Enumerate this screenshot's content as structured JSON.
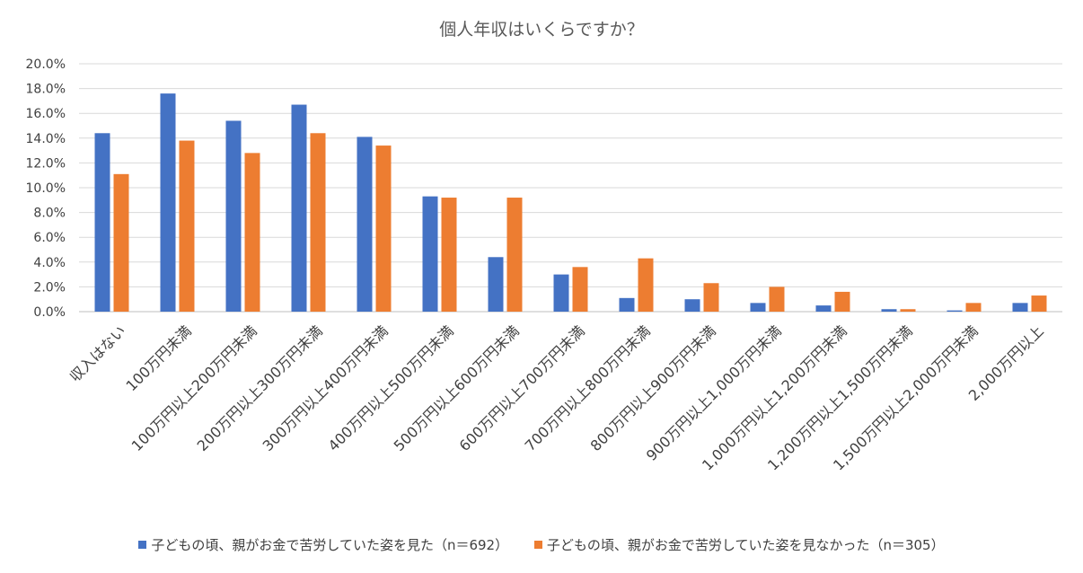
{
  "chart_data": {
    "type": "bar",
    "title": "個人年収はいくらですか？",
    "categories": [
      "収入はない",
      "100万円未満",
      "100万円以上200万円未満",
      "200万円以上300万円未満",
      "300万円以上400万円未満",
      "400万円以上500万円未満",
      "500万円以上600万円未満",
      "600万円以上700万円未満",
      "700万円以上800万円未満",
      "800万円以上900万円未満",
      "900万円以上1,000万円未満",
      "1,000万円以上1,200万円未満",
      "1,200万円以上1,500万円未満",
      "1,500万円以上2,000万円未満",
      "2,000万円以上"
    ],
    "series": [
      {
        "name": "子どもの頃、親がお金で苦労していた姿を見た（n＝692）",
        "color": "#4472C4",
        "values": [
          14.4,
          17.6,
          15.4,
          16.7,
          14.1,
          9.3,
          4.4,
          3.0,
          1.1,
          1.0,
          0.7,
          0.5,
          0.2,
          0.1,
          0.7
        ]
      },
      {
        "name": "子どもの頃、親がお金で苦労していた姿を見なかった（n＝305）",
        "color": "#ED7D31",
        "values": [
          11.1,
          13.8,
          12.8,
          14.4,
          13.4,
          9.2,
          9.2,
          3.6,
          4.3,
          2.3,
          2.0,
          1.6,
          0.2,
          0.7,
          1.3
        ]
      }
    ],
    "yticks": [
      "0.0%",
      "2.0%",
      "4.0%",
      "6.0%",
      "8.0%",
      "10.0%",
      "12.0%",
      "14.0%",
      "16.0%",
      "18.0%",
      "20.0%"
    ],
    "ylim": [
      0,
      20
    ],
    "grid": true,
    "legend_position": "bottom"
  }
}
